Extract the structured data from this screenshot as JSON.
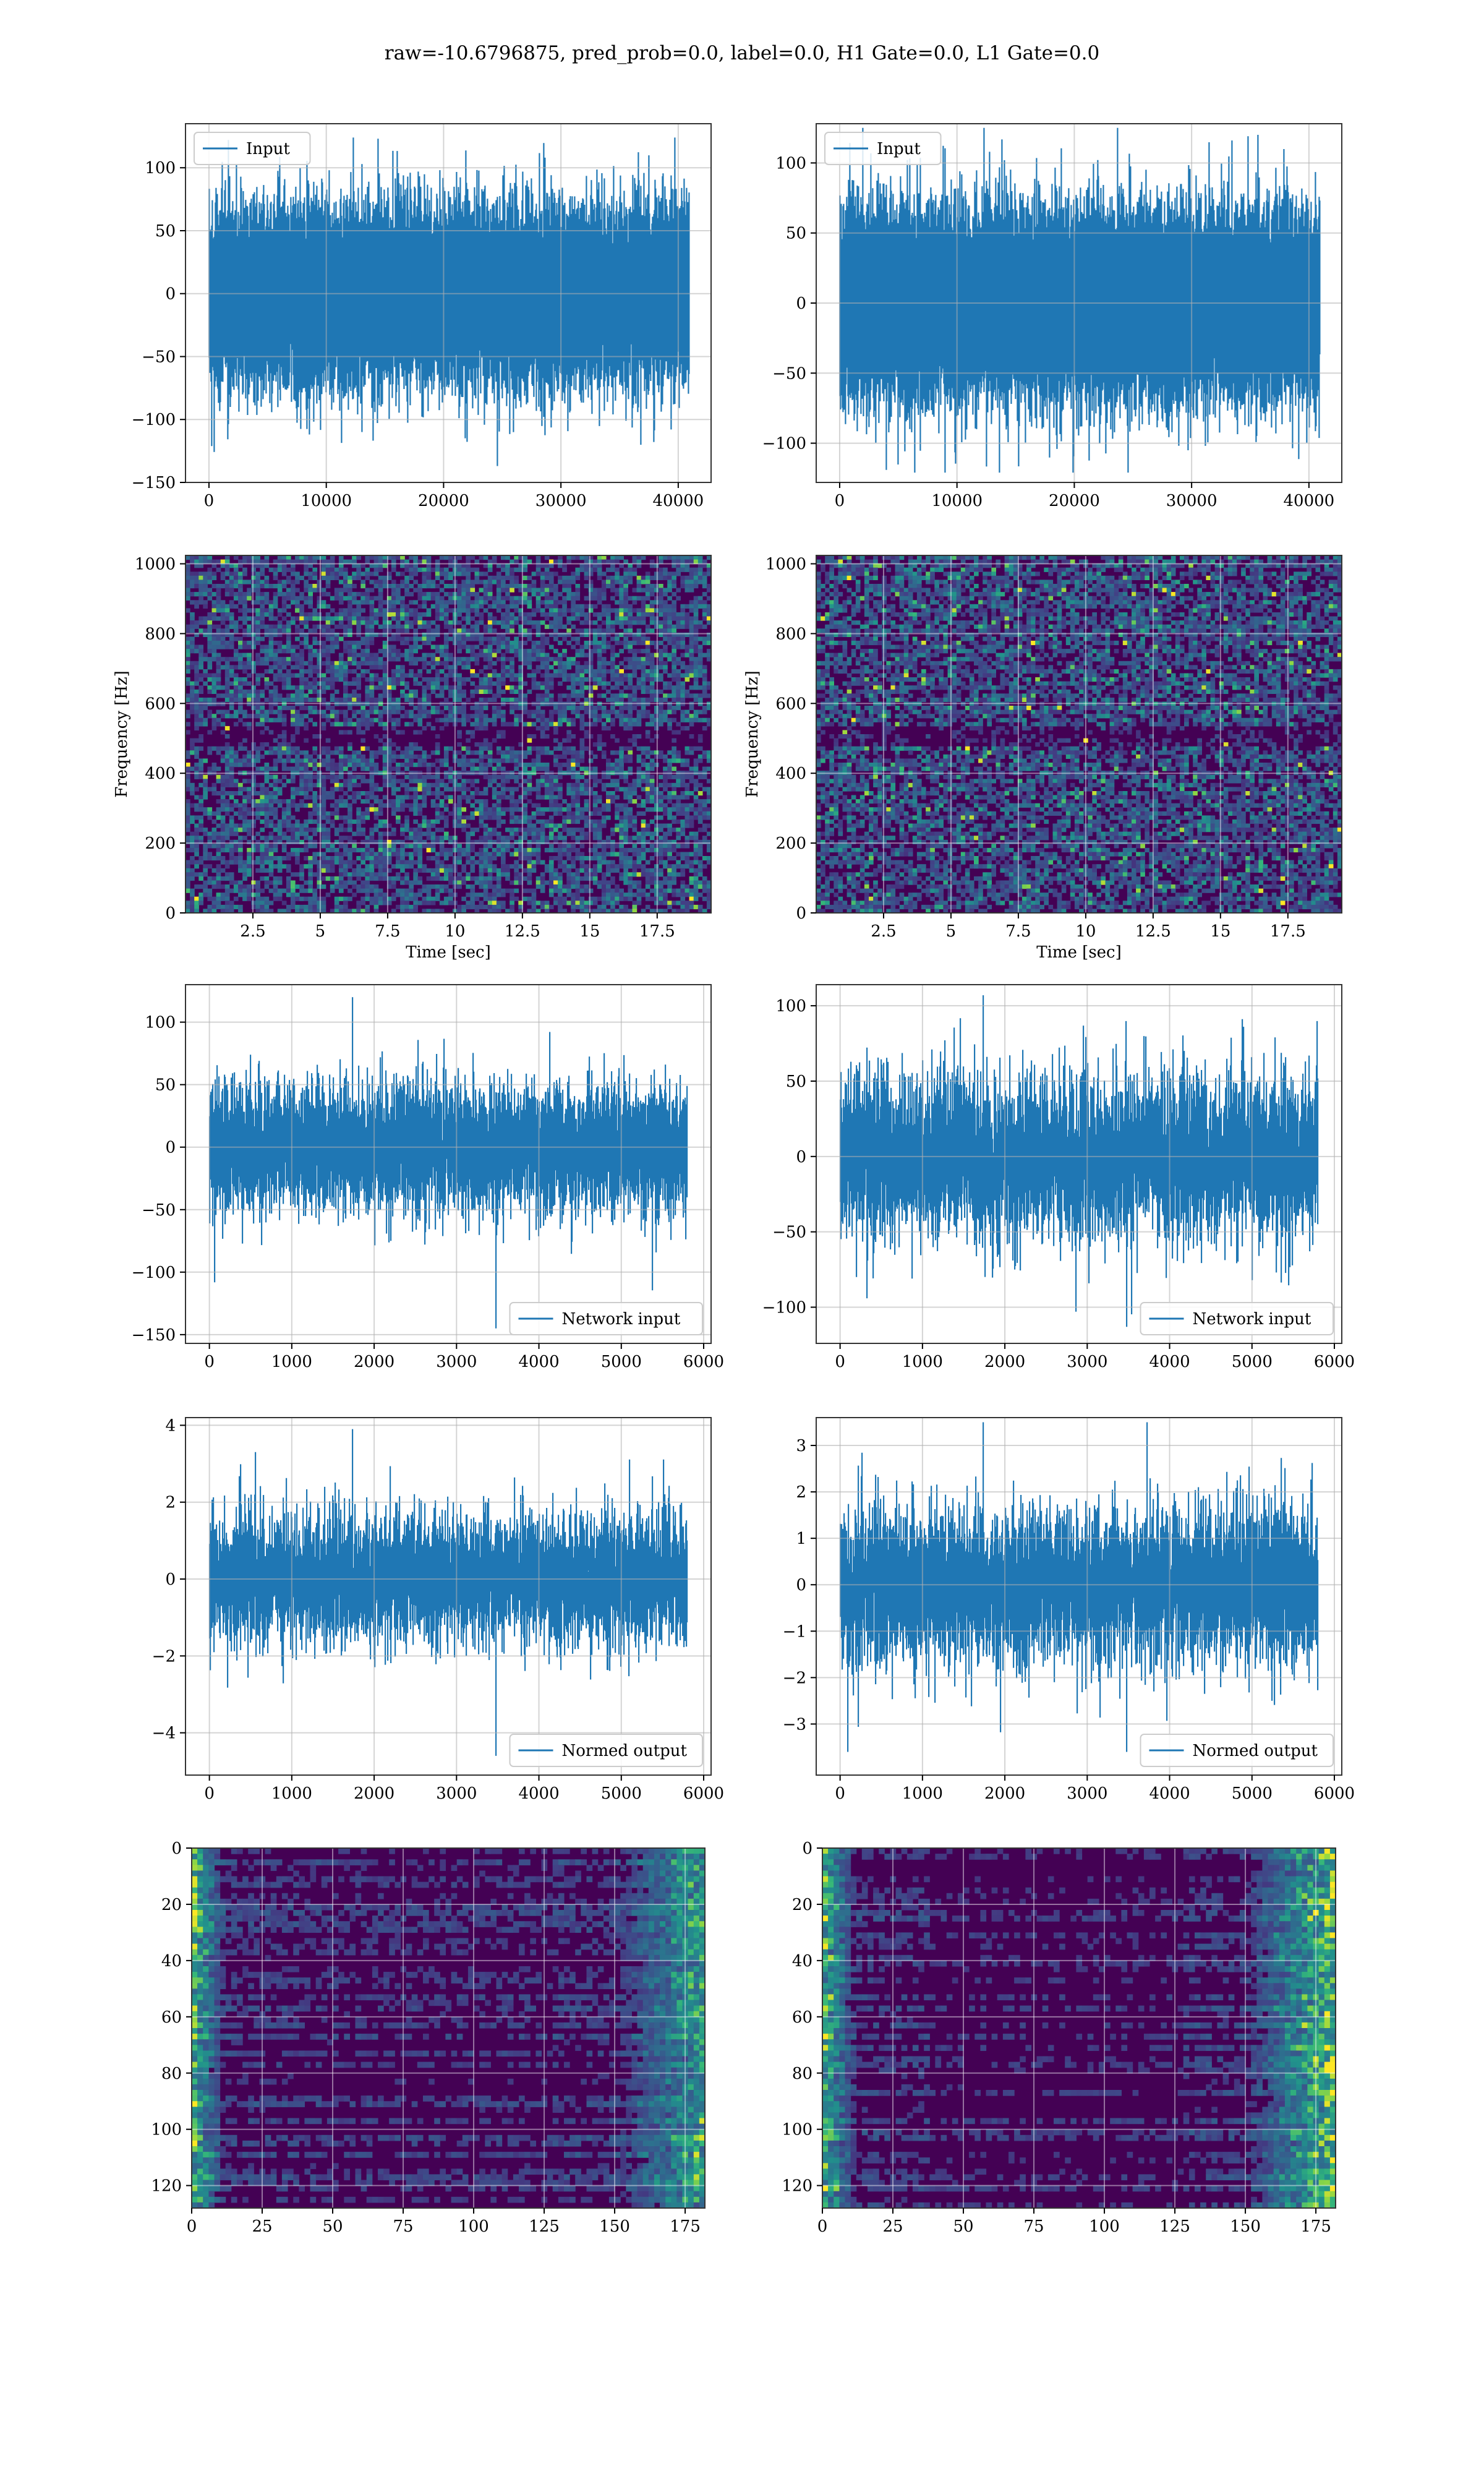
{
  "figure_title": "raw=-10.6796875, pred_prob=0.0, label=0.0, H1 Gate=0.0, L1 Gate=0.0",
  "colors": {
    "line": "#1f77b4",
    "grid": "#d0d0d0",
    "viridis_dark": "#440154",
    "viridis_mid": "#21918c",
    "viridis_bright": "#fde725"
  },
  "chart_data": [
    {
      "id": "h1-input",
      "type": "line",
      "series": [
        {
          "name": "Input"
        }
      ],
      "legend": "upper-left",
      "xlim": [
        -2000,
        42800
      ],
      "ylim": [
        -150,
        135
      ],
      "xticks": [
        0,
        10000,
        20000,
        30000,
        40000
      ],
      "yticks": [
        -150,
        -100,
        -50,
        0,
        50,
        100
      ],
      "signal": {
        "n": 40960,
        "std": 30,
        "x_start": 0,
        "x_end": 40960,
        "min": -137,
        "max": 124
      },
      "xlabel": "",
      "ylabel": "",
      "grid": true
    },
    {
      "id": "l1-input",
      "type": "line",
      "series": [
        {
          "name": "Input"
        }
      ],
      "legend": "upper-left",
      "xlim": [
        -2000,
        42800
      ],
      "ylim": [
        -128,
        128
      ],
      "xticks": [
        0,
        10000,
        20000,
        30000,
        40000
      ],
      "yticks": [
        -100,
        -50,
        0,
        50,
        100
      ],
      "signal": {
        "n": 40960,
        "std": 30,
        "x_start": 0,
        "x_end": 40960,
        "min": -121,
        "max": 125
      },
      "xlabel": "",
      "ylabel": "",
      "grid": true
    },
    {
      "id": "h1-spectrogram",
      "type": "heatmap",
      "colormap": "viridis",
      "xlim": [
        0,
        19.5
      ],
      "ylim": [
        0,
        1024
      ],
      "xticks": [
        2.5,
        5.0,
        7.5,
        10.0,
        12.5,
        15.0,
        17.5
      ],
      "yticks": [
        0,
        200,
        400,
        600,
        800,
        1000
      ],
      "xlabel": "Time [sec]",
      "ylabel": "Frequency [Hz]",
      "grid": true
    },
    {
      "id": "l1-spectrogram",
      "type": "heatmap",
      "colormap": "viridis",
      "xlim": [
        0,
        19.5
      ],
      "ylim": [
        0,
        1024
      ],
      "xticks": [
        2.5,
        5.0,
        7.5,
        10.0,
        12.5,
        15.0,
        17.5
      ],
      "yticks": [
        0,
        200,
        400,
        600,
        800,
        1000
      ],
      "xlabel": "Time [sec]",
      "ylabel": "Frequency [Hz]",
      "grid": true
    },
    {
      "id": "h1-network-input",
      "type": "line",
      "series": [
        {
          "name": "Network input"
        }
      ],
      "legend": "lower-right",
      "xlim": [
        -290,
        6090
      ],
      "ylim": [
        -157,
        130
      ],
      "xticks": [
        0,
        1000,
        2000,
        3000,
        4000,
        5000,
        6000
      ],
      "yticks": [
        -150,
        -100,
        -50,
        0,
        50,
        100
      ],
      "signal": {
        "n": 5800,
        "std": 25,
        "x_start": 0,
        "x_end": 5800,
        "min": -145,
        "max": 120
      },
      "xlabel": "",
      "ylabel": "",
      "grid": true
    },
    {
      "id": "l1-network-input",
      "type": "line",
      "series": [
        {
          "name": "Network input"
        }
      ],
      "legend": "lower-right",
      "xlim": [
        -290,
        6090
      ],
      "ylim": [
        -124,
        114
      ],
      "xticks": [
        0,
        1000,
        2000,
        3000,
        4000,
        5000,
        6000
      ],
      "yticks": [
        -100,
        -50,
        0,
        50,
        100
      ],
      "signal": {
        "n": 5800,
        "std": 25,
        "x_start": 0,
        "x_end": 5800,
        "min": -113,
        "max": 107
      },
      "xlabel": "",
      "ylabel": "",
      "grid": true
    },
    {
      "id": "h1-normed-output",
      "type": "line",
      "series": [
        {
          "name": "Normed output"
        }
      ],
      "legend": "lower-right",
      "xlim": [
        -290,
        6090
      ],
      "ylim": [
        -5.1,
        4.2
      ],
      "xticks": [
        0,
        1000,
        2000,
        3000,
        4000,
        5000,
        6000
      ],
      "yticks": [
        -4,
        -2,
        0,
        2,
        4
      ],
      "signal": {
        "n": 5800,
        "std": 0.8,
        "x_start": 0,
        "x_end": 5800,
        "min": -4.6,
        "max": 3.9
      },
      "xlabel": "",
      "ylabel": "",
      "grid": true
    },
    {
      "id": "l1-normed-output",
      "type": "line",
      "series": [
        {
          "name": "Normed output"
        }
      ],
      "legend": "lower-right",
      "xlim": [
        -290,
        6090
      ],
      "ylim": [
        -4.1,
        3.6
      ],
      "xticks": [
        0,
        1000,
        2000,
        3000,
        4000,
        5000,
        6000
      ],
      "yticks": [
        -3,
        -2,
        -1,
        0,
        1,
        2,
        3
      ],
      "signal": {
        "n": 5800,
        "std": 0.8,
        "x_start": 0,
        "x_end": 5800,
        "min": -3.6,
        "max": 3.5
      },
      "xlabel": "",
      "ylabel": "",
      "grid": true
    },
    {
      "id": "h1-feature-map",
      "type": "heatmap",
      "colormap": "viridis",
      "shape": [
        128,
        182
      ],
      "xlim": [
        0,
        182
      ],
      "ylim": [
        128,
        0
      ],
      "xticks": [
        0,
        25,
        50,
        75,
        100,
        125,
        150,
        175
      ],
      "yticks": [
        0,
        20,
        40,
        60,
        80,
        100,
        120
      ],
      "xlabel": "",
      "ylabel": "",
      "grid": true
    },
    {
      "id": "l1-feature-map",
      "type": "heatmap",
      "colormap": "viridis",
      "shape": [
        128,
        182
      ],
      "xlim": [
        0,
        182
      ],
      "ylim": [
        128,
        0
      ],
      "xticks": [
        0,
        25,
        50,
        75,
        100,
        125,
        150,
        175
      ],
      "yticks": [
        0,
        20,
        40,
        60,
        80,
        100,
        120
      ],
      "xlabel": "",
      "ylabel": "",
      "grid": true
    }
  ]
}
